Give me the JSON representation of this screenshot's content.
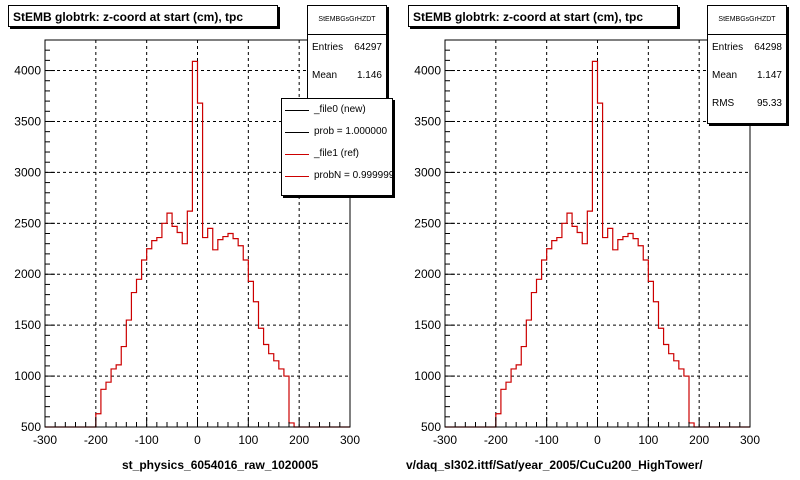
{
  "colors": {
    "histogram": "#cc0000",
    "frame": "#000000",
    "grid": "#000000",
    "background": "#ffffff"
  },
  "chart_data": [
    {
      "type": "histogram",
      "title": "StEMB globtrk: z-coord at start (cm), tpc",
      "xlabel": "st_physics_6054016_raw_1020005",
      "ylabel": "",
      "xlim": [
        -300,
        300
      ],
      "ylim": [
        500,
        4300
      ],
      "xticks": [
        -300,
        -200,
        -100,
        0,
        100,
        200,
        300
      ],
      "yticks": [
        500,
        1000,
        1500,
        2000,
        2500,
        3000,
        3500,
        4000
      ],
      "grid": true,
      "bin_width": 10,
      "bin_start": -200,
      "values": [
        630,
        870,
        940,
        1070,
        1110,
        1290,
        1550,
        1820,
        1950,
        2140,
        2250,
        2330,
        2360,
        2500,
        2600,
        2470,
        2410,
        2300,
        2620,
        4090,
        3680,
        2360,
        2450,
        2240,
        2340,
        2370,
        2400,
        2350,
        2280,
        2140,
        1930,
        1730,
        1470,
        1310,
        1220,
        1150,
        1070,
        1000,
        540,
        490
      ],
      "stats": {
        "name": "StEMBGsGrHZDT",
        "entries": "64297",
        "mean": "1.146"
      },
      "legend": {
        "placement": "top-right",
        "entries": [
          {
            "label": "_file0 (new)",
            "color": "#000000"
          },
          {
            "label": "prob = 1.000000",
            "color": "#000000"
          },
          {
            "label": "_file1 (ref)",
            "color": "#cc0000"
          },
          {
            "label": "probN = 0.999999",
            "color": "#cc0000"
          }
        ]
      }
    },
    {
      "type": "histogram",
      "title": "StEMB globtrk: z-coord at start (cm), tpc",
      "xlabel": "v/daq_sl302.ittf/Sat/year_2005/CuCu200_HighTower/",
      "ylabel": "",
      "xlim": [
        -300,
        300
      ],
      "ylim": [
        500,
        4300
      ],
      "xticks": [
        -300,
        -200,
        -100,
        0,
        100,
        200,
        300
      ],
      "yticks": [
        500,
        1000,
        1500,
        2000,
        2500,
        3000,
        3500,
        4000
      ],
      "grid": true,
      "bin_width": 10,
      "bin_start": -200,
      "values": [
        630,
        870,
        940,
        1070,
        1110,
        1290,
        1550,
        1820,
        1950,
        2140,
        2250,
        2330,
        2360,
        2500,
        2600,
        2470,
        2410,
        2300,
        2620,
        4090,
        3680,
        2360,
        2450,
        2240,
        2340,
        2370,
        2400,
        2350,
        2280,
        2140,
        1930,
        1730,
        1470,
        1310,
        1220,
        1150,
        1070,
        1000,
        540,
        490
      ],
      "stats": {
        "name": "StEMBGsGrHZDT",
        "entries": "64298",
        "mean": "1.147",
        "rms": "95.33"
      }
    }
  ]
}
